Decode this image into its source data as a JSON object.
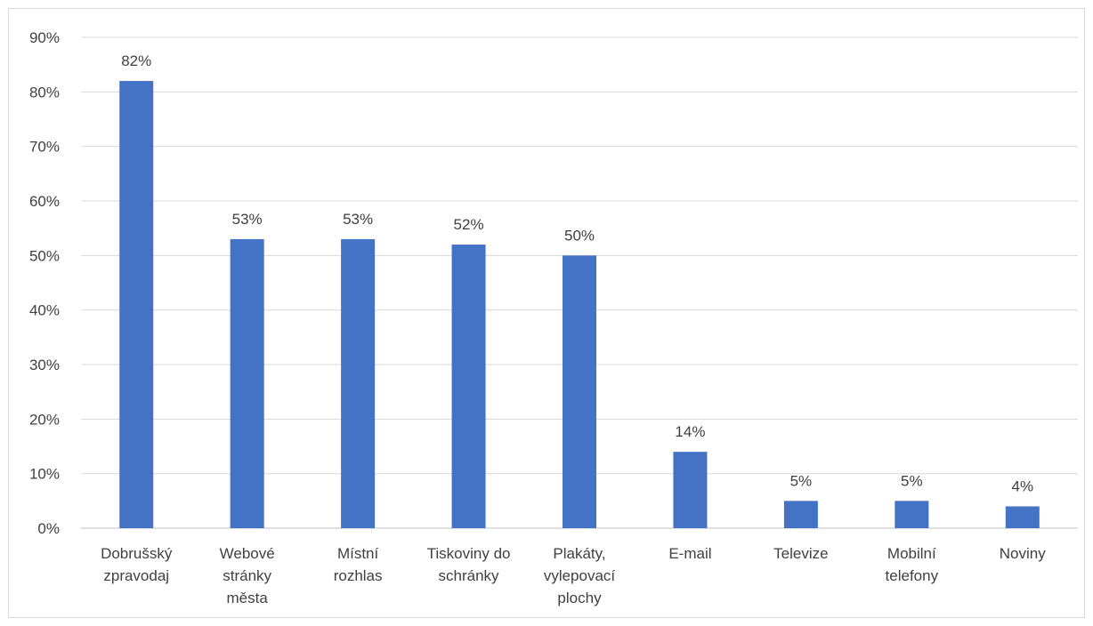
{
  "chart_data": {
    "type": "bar",
    "categories": [
      [
        "Dobrušský",
        "zpravodaj"
      ],
      [
        "Webové",
        "stránky",
        "města"
      ],
      [
        "Místní",
        "rozhlas"
      ],
      [
        "Tiskoviny do",
        "schránky"
      ],
      [
        "Plakáty,",
        "vylepovací",
        "plochy"
      ],
      [
        "E-mail"
      ],
      [
        "Televize"
      ],
      [
        "Mobilní",
        "telefony"
      ],
      [
        "Noviny"
      ]
    ],
    "values": [
      82,
      53,
      53,
      52,
      50,
      14,
      5,
      5,
      4
    ],
    "data_labels": [
      "82%",
      "53%",
      "53%",
      "52%",
      "50%",
      "14%",
      "5%",
      "5%",
      "4%"
    ],
    "y_ticks": [
      0,
      10,
      20,
      30,
      40,
      50,
      60,
      70,
      80,
      90
    ],
    "y_tick_labels": [
      "0%",
      "10%",
      "20%",
      "30%",
      "40%",
      "50%",
      "60%",
      "70%",
      "80%",
      "90%"
    ],
    "ylim": [
      0,
      90
    ],
    "grid": true,
    "legend": "none",
    "bar_color": "#4472c4",
    "title": "",
    "xlabel": "",
    "ylabel": ""
  }
}
